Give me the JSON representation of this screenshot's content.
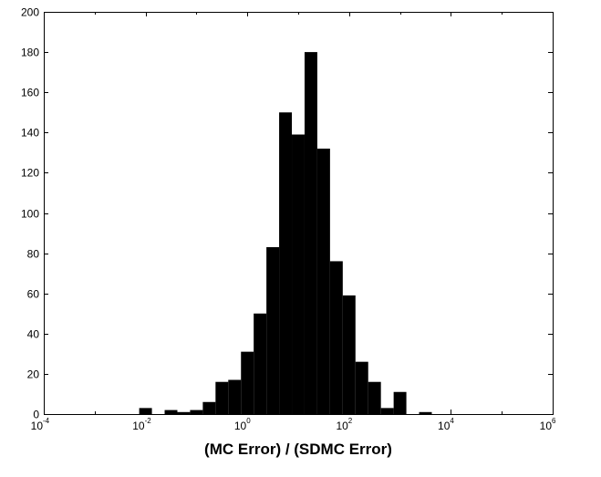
{
  "chart_data": {
    "type": "bar",
    "title": "",
    "xlabel": "(MC Error) / (SDMC Error)",
    "ylabel": "",
    "x_scale": "log",
    "xlim": [
      0.0001,
      1000000
    ],
    "ylim": [
      0,
      200
    ],
    "grid": false,
    "y_ticks": [
      0,
      20,
      40,
      60,
      80,
      100,
      120,
      140,
      160,
      180,
      200
    ],
    "x_ticks": [
      {
        "base": "10",
        "exp": "-4"
      },
      {
        "base": "10",
        "exp": "-2"
      },
      {
        "base": "10",
        "exp": "0"
      },
      {
        "base": "10",
        "exp": "2"
      },
      {
        "base": "10",
        "exp": "4"
      },
      {
        "base": "10",
        "exp": "6"
      }
    ],
    "bar_color": "#000000",
    "bin_log_width": 0.25,
    "bins": [
      {
        "log_center": -2.0,
        "value": 3
      },
      {
        "log_center": -1.5,
        "value": 2
      },
      {
        "log_center": -1.25,
        "value": 1
      },
      {
        "log_center": -1.0,
        "value": 2
      },
      {
        "log_center": -0.75,
        "value": 6
      },
      {
        "log_center": -0.5,
        "value": 16
      },
      {
        "log_center": -0.25,
        "value": 17
      },
      {
        "log_center": 0.0,
        "value": 31
      },
      {
        "log_center": 0.25,
        "value": 50
      },
      {
        "log_center": 0.5,
        "value": 83
      },
      {
        "log_center": 0.75,
        "value": 150
      },
      {
        "log_center": 1.0,
        "value": 139
      },
      {
        "log_center": 1.25,
        "value": 180
      },
      {
        "log_center": 1.5,
        "value": 132
      },
      {
        "log_center": 1.75,
        "value": 76
      },
      {
        "log_center": 2.0,
        "value": 59
      },
      {
        "log_center": 2.25,
        "value": 26
      },
      {
        "log_center": 2.5,
        "value": 16
      },
      {
        "log_center": 2.75,
        "value": 3
      },
      {
        "log_center": 3.0,
        "value": 11
      },
      {
        "log_center": 3.5,
        "value": 1
      }
    ]
  }
}
